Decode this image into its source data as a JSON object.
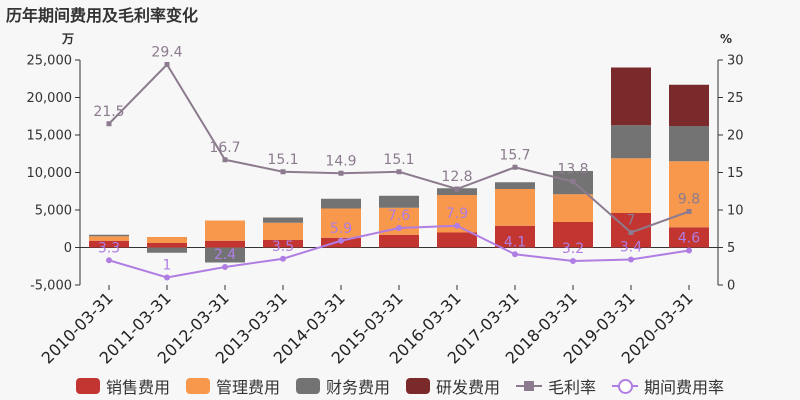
{
  "title": "历年期间费用及毛利率变化",
  "chart_data": {
    "type": "bar",
    "stacked": true,
    "categories": [
      "2010-03-31",
      "2011-03-31",
      "2012-03-31",
      "2013-03-31",
      "2014-03-31",
      "2015-03-31",
      "2016-03-31",
      "2017-03-31",
      "2018-03-31",
      "2019-03-31",
      "2020-03-31"
    ],
    "left_axis": {
      "unit": "万",
      "min": -5000,
      "max": 25000,
      "ticks": [
        "-5,000",
        "0",
        "5,000",
        "10,000",
        "15,000",
        "20,000",
        "25,000"
      ]
    },
    "right_axis": {
      "unit": "%",
      "min": 0,
      "max": 30,
      "ticks": [
        "0",
        "5",
        "10",
        "15",
        "20",
        "25",
        "30"
      ]
    },
    "series": [
      {
        "name": "销售费用",
        "color": "#c23531",
        "type": "bar",
        "values": [
          900,
          600,
          900,
          1000,
          1300,
          1700,
          2000,
          2900,
          3400,
          4600,
          2700
        ]
      },
      {
        "name": "管理费用",
        "color": "#f7984c",
        "type": "bar",
        "values": [
          600,
          800,
          2700,
          2300,
          3900,
          3600,
          5000,
          4900,
          3700,
          7300,
          8800
        ]
      },
      {
        "name": "财务费用",
        "color": "#737373",
        "type": "bar",
        "values": [
          200,
          -700,
          -2000,
          700,
          1300,
          1600,
          900,
          900,
          3100,
          4400,
          4700
        ]
      },
      {
        "name": "研发费用",
        "color": "#7b2a2b",
        "type": "bar",
        "values": [
          0,
          0,
          0,
          0,
          0,
          0,
          0,
          0,
          0,
          7700,
          5500
        ]
      },
      {
        "name": "毛利率",
        "color": "#8c7b8e",
        "type": "line",
        "axis": "right",
        "marker": "square",
        "values": [
          21.5,
          29.4,
          16.7,
          15.1,
          14.9,
          15.1,
          12.8,
          15.7,
          13.8,
          7,
          9.8
        ],
        "labels": [
          "21.5",
          "29.4",
          "16.7",
          "15.1",
          "14.9",
          "15.1",
          "12.8",
          "15.7",
          "13.8",
          "7",
          "9.8"
        ]
      },
      {
        "name": "期间费用率",
        "color": "#b07ee3",
        "type": "line",
        "axis": "right",
        "marker": "circle",
        "values": [
          3.3,
          1,
          2.4,
          3.5,
          5.9,
          7.6,
          7.9,
          4.1,
          3.2,
          3.4,
          4.6
        ],
        "labels": [
          "3.3",
          "1",
          "2.4",
          "3.5",
          "5.9",
          "7.6",
          "7.9",
          "4.1",
          "3.2",
          "3.4",
          "4.6"
        ]
      }
    ]
  }
}
